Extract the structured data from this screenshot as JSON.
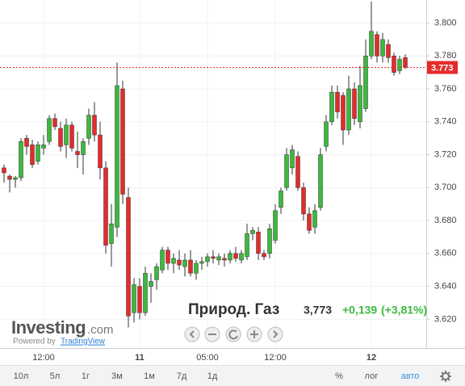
{
  "chart_data": {
    "type": "candlestick",
    "categories": [
      null,
      null,
      null,
      null,
      null,
      null,
      null,
      "12:00",
      null,
      null,
      null,
      null,
      null,
      null,
      null,
      null,
      null,
      null,
      null,
      null,
      null,
      null,
      null,
      null,
      "11",
      null,
      null,
      null,
      null,
      null,
      null,
      null,
      null,
      null,
      null,
      null,
      "05:00",
      null,
      null,
      null,
      null,
      null,
      null,
      null,
      null,
      null,
      null,
      null,
      "12:00",
      null,
      null,
      null,
      null,
      null,
      null,
      null,
      null,
      null,
      null,
      null,
      null,
      null,
      null,
      null,
      null,
      "12",
      null,
      null,
      null,
      null,
      null,
      null
    ],
    "open": [
      3.712,
      3.707,
      3.705,
      3.706,
      3.73,
      3.726,
      3.716,
      3.724,
      3.728,
      3.742,
      3.736,
      3.726,
      3.738,
      3.722,
      3.72,
      3.73,
      3.744,
      3.732,
      3.712,
      3.666,
      3.676,
      3.76,
      3.694,
      3.624,
      3.64,
      3.624,
      3.64,
      3.644,
      3.65,
      3.662,
      3.654,
      3.656,
      3.652,
      3.656,
      3.648,
      3.654,
      3.655,
      3.658,
      3.656,
      3.657,
      3.656,
      3.66,
      3.656,
      3.658,
      3.672,
      3.673,
      3.66,
      3.66,
      3.668,
      3.688,
      3.7,
      3.712,
      3.719,
      3.7,
      3.684,
      3.676,
      3.688,
      3.725,
      3.74,
      3.758,
      3.756,
      3.735,
      3.76,
      3.74,
      3.748,
      3.78,
      3.793,
      3.78,
      3.787,
      3.78,
      3.771,
      3.779
    ],
    "high": [
      3.714,
      3.708,
      3.707,
      3.73,
      3.732,
      3.729,
      3.728,
      3.732,
      3.744,
      3.745,
      3.74,
      3.742,
      3.74,
      3.734,
      3.73,
      3.748,
      3.752,
      3.74,
      3.716,
      3.69,
      3.776,
      3.765,
      3.7,
      3.645,
      3.645,
      3.652,
      3.648,
      3.654,
      3.664,
      3.664,
      3.66,
      3.662,
      3.66,
      3.662,
      3.656,
      3.658,
      3.66,
      3.662,
      3.66,
      3.66,
      3.662,
      3.664,
      3.662,
      3.678,
      3.676,
      3.676,
      3.662,
      3.678,
      3.69,
      3.7,
      3.724,
      3.726,
      3.722,
      3.703,
      3.688,
      3.69,
      3.724,
      3.744,
      3.762,
      3.762,
      3.758,
      3.768,
      3.764,
      3.774,
      3.79,
      3.813,
      3.795,
      3.794,
      3.79,
      3.782,
      3.78,
      3.781
    ],
    "low": [
      3.703,
      3.697,
      3.7,
      3.704,
      3.72,
      3.712,
      3.714,
      3.72,
      3.726,
      3.735,
      3.722,
      3.718,
      3.722,
      3.712,
      3.708,
      3.726,
      3.728,
      3.705,
      3.66,
      3.652,
      3.67,
      3.69,
      3.615,
      3.618,
      3.62,
      3.622,
      3.63,
      3.638,
      3.648,
      3.65,
      3.648,
      3.65,
      3.646,
      3.646,
      3.644,
      3.65,
      3.652,
      3.654,
      3.653,
      3.652,
      3.654,
      3.655,
      3.654,
      3.656,
      3.668,
      3.656,
      3.656,
      3.657,
      3.666,
      3.684,
      3.698,
      3.708,
      3.698,
      3.68,
      3.672,
      3.672,
      3.686,
      3.722,
      3.738,
      3.742,
      3.726,
      3.732,
      3.738,
      3.736,
      3.746,
      3.778,
      3.776,
      3.776,
      3.776,
      3.768,
      3.769,
      3.772
    ],
    "close": [
      3.709,
      3.705,
      3.706,
      3.728,
      3.725,
      3.714,
      3.726,
      3.726,
      3.742,
      3.737,
      3.725,
      3.738,
      3.724,
      3.72,
      3.728,
      3.744,
      3.732,
      3.712,
      3.665,
      3.678,
      3.762,
      3.696,
      3.622,
      3.641,
      3.624,
      3.648,
      3.643,
      3.652,
      3.662,
      3.654,
      3.657,
      3.653,
      3.656,
      3.648,
      3.654,
      3.655,
      3.658,
      3.657,
      3.658,
      3.656,
      3.66,
      3.657,
      3.66,
      3.672,
      3.674,
      3.66,
      3.658,
      3.675,
      3.686,
      3.698,
      3.72,
      3.723,
      3.7,
      3.684,
      3.674,
      3.686,
      3.72,
      3.74,
      3.758,
      3.746,
      3.735,
      3.76,
      3.742,
      3.762,
      3.78,
      3.795,
      3.78,
      3.79,
      3.779,
      3.77,
      3.778,
      3.773
    ],
    "up_color": "#3cb93c",
    "down_color": "#e52b2b",
    "ylim": [
      3.603,
      3.814
    ],
    "yticks": [
      {
        "value": 3.62,
        "label": "3.620"
      },
      {
        "value": 3.64,
        "label": "3.640"
      },
      {
        "value": 3.66,
        "label": "3.660"
      },
      {
        "value": 3.68,
        "label": "3.680"
      },
      {
        "value": 3.7,
        "label": "3.700"
      },
      {
        "value": 3.72,
        "label": "3.720"
      },
      {
        "value": 3.74,
        "label": "3.740"
      },
      {
        "value": 3.76,
        "label": "3.760"
      },
      {
        "value": 3.78,
        "label": "3.780"
      },
      {
        "value": 3.8,
        "label": "3.800"
      }
    ],
    "grid": true,
    "last_price": 3.773,
    "title": "Природ. Газ",
    "price_text": "3,773",
    "change_text": "+0,139",
    "change_pct_text": "(+3,81%)"
  },
  "logo": {
    "name": "Investing",
    "suffix": ".com",
    "powered": "Powered by",
    "provider": "TradingView"
  },
  "toolbar": {
    "ranges": [
      "10л",
      "5л",
      "1г",
      "3м",
      "1м",
      "7д",
      "1д"
    ],
    "percent": "%",
    "log": "лог",
    "auto": "авто"
  }
}
